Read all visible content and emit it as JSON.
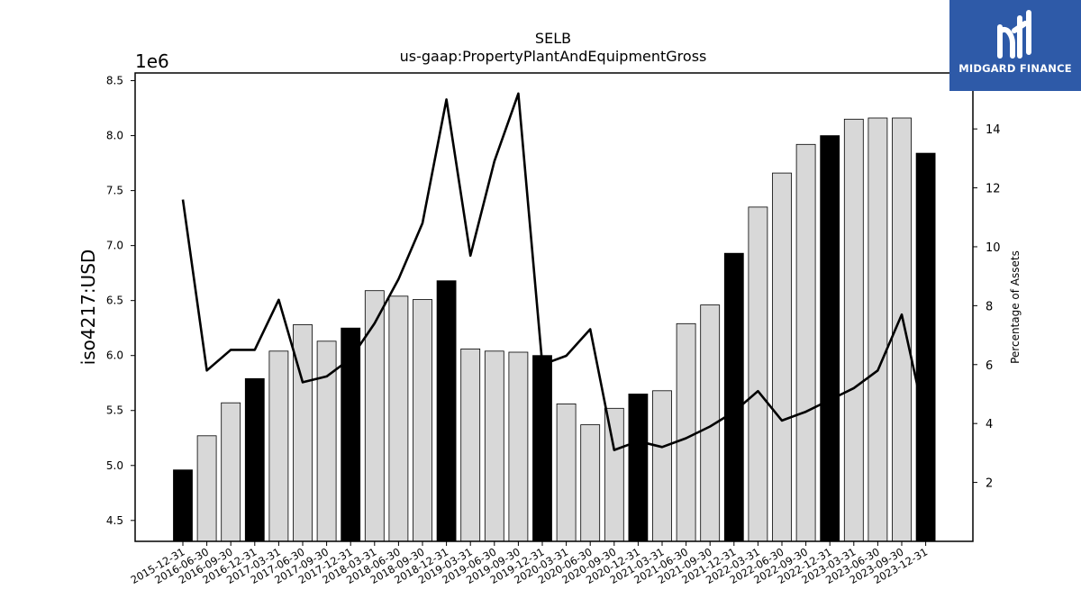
{
  "chart_data": {
    "type": "bar",
    "title": "SELB",
    "subtitle": "us-gaap:PropertyPlantAndEquipmentGross",
    "ylabel": "iso4217:USD",
    "y_offset_label": "1e6",
    "y2label": "Percentage of Assets",
    "ylim": [
      4.31,
      8.57
    ],
    "yticks": [
      "4.5",
      "5.0",
      "5.5",
      "6.0",
      "6.5",
      "7.0",
      "7.5",
      "8.0",
      "8.5"
    ],
    "y2lim": [
      0,
      15.9
    ],
    "y2ticks": [
      "2",
      "4",
      "6",
      "8",
      "10",
      "12",
      "14"
    ],
    "grid": false,
    "categories": [
      "2015-12-31",
      "2016-06-30",
      "2016-09-30",
      "2016-12-31",
      "2017-03-31",
      "2017-06-30",
      "2017-09-30",
      "2017-12-31",
      "2018-03-31",
      "2018-06-30",
      "2018-09-30",
      "2018-12-31",
      "2019-03-31",
      "2019-06-30",
      "2019-09-30",
      "2019-12-31",
      "2020-03-31",
      "2020-06-30",
      "2020-09-30",
      "2020-12-31",
      "2021-03-31",
      "2021-06-30",
      "2021-09-30",
      "2021-12-31",
      "2022-03-31",
      "2022-06-30",
      "2022-09-30",
      "2022-12-31",
      "2023-03-31",
      "2023-06-30",
      "2023-09-30",
      "2023-12-31"
    ],
    "series": [
      {
        "type": "bar",
        "values": [
          4.96,
          5.27,
          5.57,
          5.79,
          6.04,
          6.28,
          6.13,
          6.25,
          6.59,
          6.54,
          6.51,
          6.68,
          6.06,
          6.04,
          6.03,
          6.0,
          5.56,
          5.37,
          5.52,
          5.65,
          5.68,
          6.29,
          6.46,
          6.93,
          7.35,
          7.66,
          7.92,
          8.0,
          8.15,
          8.16,
          8.16,
          7.84
        ],
        "annual_color": "#000000",
        "quarter_color": "#d8d8d8"
      },
      {
        "type": "line",
        "axis": "secondary",
        "color": "#000000",
        "values": [
          11.6,
          5.8,
          6.5,
          6.5,
          8.2,
          5.4,
          5.6,
          6.2,
          7.4,
          8.9,
          10.8,
          15.0,
          9.7,
          12.9,
          15.2,
          6.0,
          6.3,
          7.2,
          3.1,
          3.4,
          3.2,
          3.5,
          3.9,
          4.4,
          5.1,
          4.1,
          4.4,
          4.8,
          5.2,
          5.8,
          7.7,
          4.0
        ]
      }
    ]
  },
  "logo": {
    "text": "MIDGARD FINANCE",
    "color": "#2e5aa8"
  }
}
